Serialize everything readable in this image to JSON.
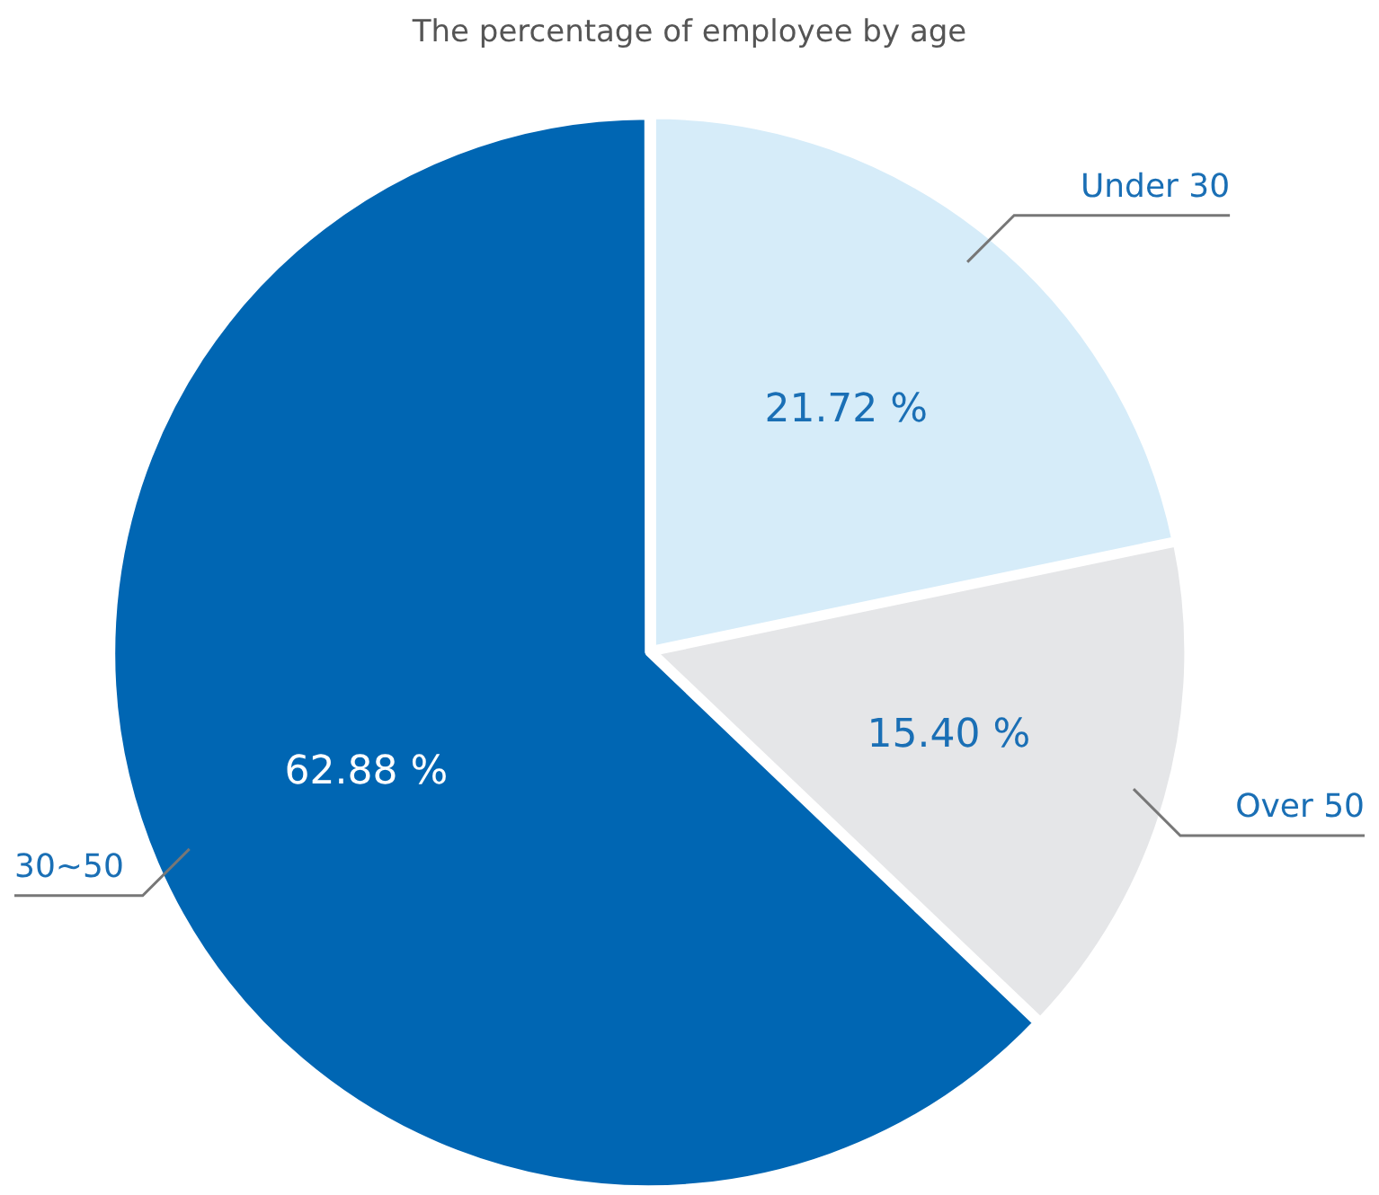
{
  "chart_data": {
    "type": "pie",
    "title": "The percentage of employee by age",
    "categories": [
      "Under 30",
      "Over 50",
      "30~50"
    ],
    "values": [
      21.72,
      15.4,
      62.88
    ],
    "colors": [
      "#d6ecf9",
      "#e5e6e8",
      "#0066b3"
    ],
    "value_labels": [
      "21.72 %",
      "15.40 %",
      "62.88 %"
    ],
    "legend": false
  }
}
